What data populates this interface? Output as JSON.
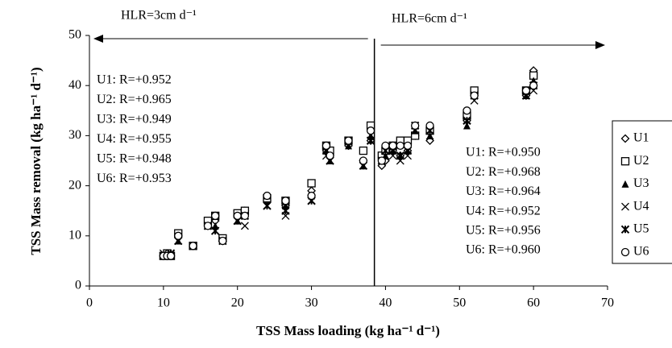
{
  "chart_data": {
    "type": "scatter",
    "x_label": "TSS Mass loading (kg ha⁻¹ d⁻¹)",
    "y_label": "TSS Mass removal (kg ha⁻¹ d⁻¹)",
    "xlim": [
      0,
      70
    ],
    "xticks": [
      0,
      10,
      20,
      30,
      40,
      50,
      60,
      70
    ],
    "ylim": [
      0,
      50
    ],
    "yticks": [
      0,
      10,
      20,
      30,
      40,
      50
    ],
    "divider_x": 38.5,
    "period_labels": [
      "HLR=3cm d⁻¹",
      "HLR=6cm d⁻¹"
    ],
    "annotations_left": [
      "U1: R=+0.952",
      "U2: R=+0.965",
      "U3: R=+0.949",
      "U4: R=+0.955",
      "U5: R=+0.948",
      "U6: R=+0.953"
    ],
    "annotations_right": [
      "U1: R=+0.950",
      "U2: R=+0.968",
      "U3: R=+0.964",
      "U4: R=+0.952",
      "U5: R=+0.956",
      "U6: R=+0.960"
    ],
    "x": [
      10,
      10.5,
      11,
      12,
      14,
      16,
      17,
      18,
      20,
      21,
      24,
      26.5,
      30,
      32,
      32.5,
      35,
      37,
      38,
      39.5,
      40,
      41,
      42,
      43,
      44,
      46,
      51,
      52,
      59,
      60
    ],
    "series": [
      {
        "name": "U1",
        "marker": "diamond",
        "color": "#000000",
        "values": [
          6,
          6,
          6,
          10,
          8,
          12,
          13,
          9,
          14,
          15,
          17,
          16,
          19,
          27,
          26,
          28,
          25,
          29,
          24,
          25,
          27,
          26,
          27,
          30,
          29,
          33,
          38,
          38,
          43
        ]
      },
      {
        "name": "U2",
        "marker": "square",
        "color": "#000000",
        "values": [
          6,
          6.5,
          6,
          10.5,
          8,
          13,
          14,
          9.5,
          14.5,
          15,
          17.5,
          17,
          20.5,
          28,
          27,
          29,
          27,
          32,
          26,
          27,
          28,
          29,
          29,
          30,
          31,
          34,
          39,
          39,
          42
        ]
      },
      {
        "name": "U3",
        "marker": "triangle",
        "color": "#000000",
        "values": [
          6,
          6,
          6,
          9,
          8,
          12,
          12,
          9,
          13,
          14,
          18,
          16,
          18,
          27,
          25,
          28,
          24,
          30,
          25,
          26,
          27,
          26,
          27,
          31,
          30,
          32,
          38,
          38,
          41
        ]
      },
      {
        "name": "U4",
        "marker": "x",
        "color": "#000000",
        "values": [
          6.5,
          6,
          6,
          9,
          8,
          12,
          11,
          9,
          13,
          12,
          16,
          14,
          17,
          26,
          25,
          29,
          24,
          29,
          25,
          26,
          26,
          25,
          26,
          31,
          30,
          33,
          37,
          39,
          39
        ]
      },
      {
        "name": "U5",
        "marker": "asterisk",
        "color": "#000000",
        "values": [
          6,
          6,
          6.5,
          9,
          8,
          12,
          11,
          9,
          13,
          14,
          16,
          15,
          17,
          27,
          25,
          29,
          24,
          29,
          25,
          27,
          27,
          26,
          27,
          32,
          31,
          33,
          38,
          38,
          40
        ]
      },
      {
        "name": "U6",
        "marker": "circle",
        "color": "#000000",
        "values": [
          6,
          6,
          6,
          10,
          8,
          12,
          14,
          9,
          14,
          14,
          18,
          17,
          18,
          28,
          26,
          29,
          25,
          31,
          25,
          28,
          28,
          28,
          28,
          32,
          32,
          35,
          38,
          39,
          40
        ]
      }
    ]
  }
}
